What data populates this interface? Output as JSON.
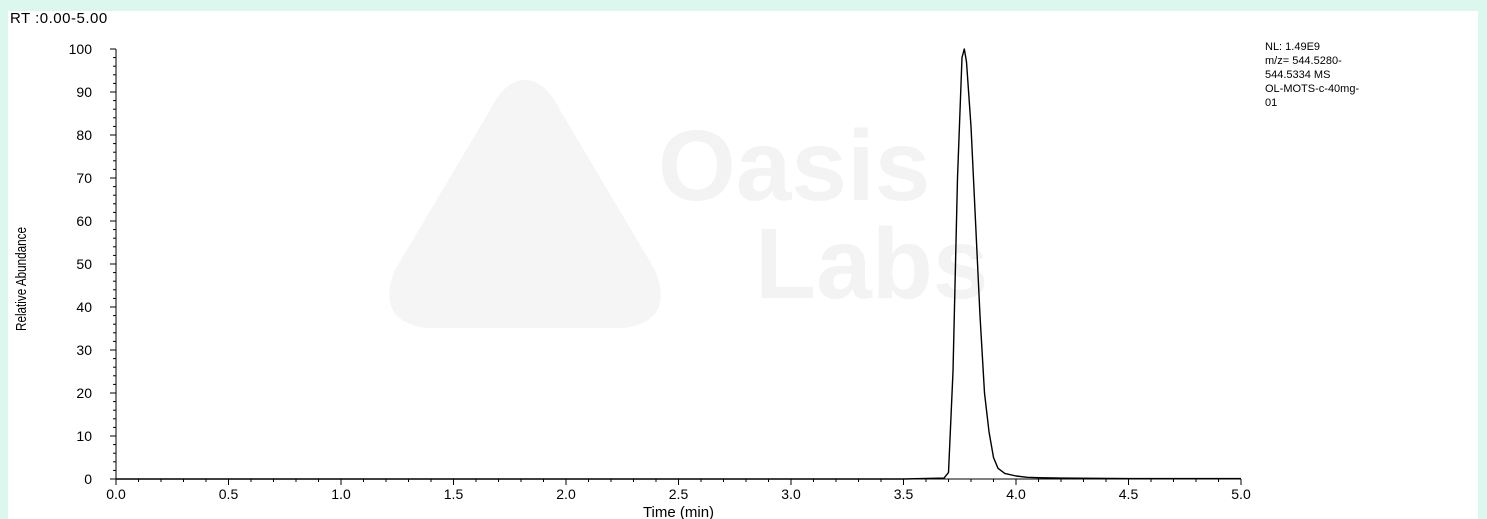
{
  "header": {
    "range_label": "RT :0.00-5.00"
  },
  "info": {
    "lines": [
      "NL: 1.49E9",
      "m/z= 544.5280-",
      "544.5334 MS",
      "OL-MOTS-c-40mg-",
      "01"
    ]
  },
  "watermark": {
    "line1": "Oasis",
    "line2": "Labs"
  },
  "colors": {
    "background": "#dcf7ee",
    "plot_bg": "#ffffff",
    "trace": "#000000"
  },
  "chart_data": {
    "type": "line",
    "title": "",
    "xlabel": "Time (min)",
    "ylabel": "Relative Abundance",
    "xlim": [
      0,
      5
    ],
    "ylim": [
      0,
      100
    ],
    "x_ticks": [
      "0.0",
      "0.5",
      "1.0",
      "1.5",
      "2.0",
      "2.5",
      "3.0",
      "3.5",
      "4.0",
      "4.5",
      "5.0"
    ],
    "y_ticks": [
      "0",
      "10",
      "20",
      "30",
      "40",
      "50",
      "60",
      "70",
      "80",
      "90",
      "100"
    ],
    "grid": false,
    "series": [
      {
        "x": [
          0.0,
          3.5,
          3.68,
          3.7,
          3.72,
          3.74,
          3.76,
          3.77,
          3.78,
          3.8,
          3.82,
          3.84,
          3.86,
          3.88,
          3.9,
          3.92,
          3.95,
          4.0,
          4.05,
          4.1,
          4.2,
          4.5,
          5.0
        ],
        "y": [
          0,
          0,
          0.2,
          1.5,
          25,
          70,
          98,
          100,
          97,
          82,
          60,
          38,
          20,
          11,
          5,
          2.5,
          1.3,
          0.7,
          0.4,
          0.3,
          0.2,
          0.1,
          0.1
        ]
      }
    ]
  }
}
